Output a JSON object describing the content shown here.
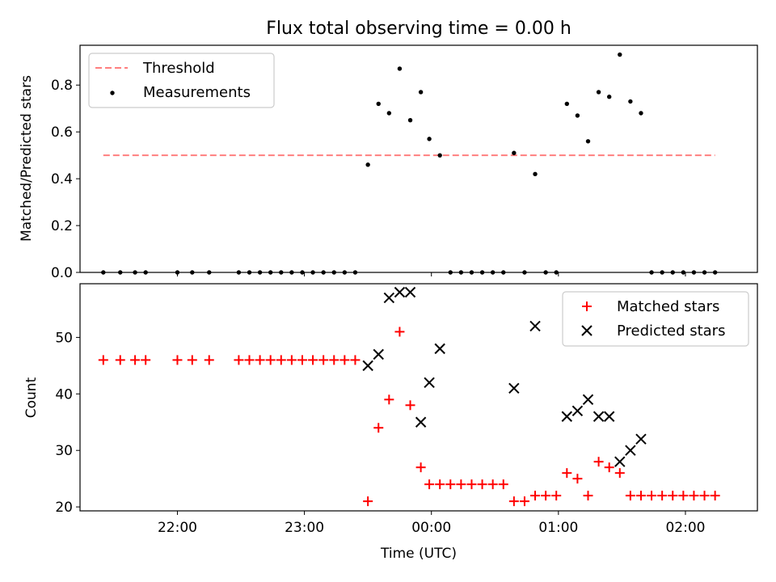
{
  "chart_data": [
    {
      "type": "scatter",
      "title": "Flux total observing time = 0.00 h",
      "xlabel": "",
      "ylabel": "Matched/Predicted stars",
      "ylim": [
        0,
        0.97
      ],
      "xlim": [
        "21:14",
        "02:34"
      ],
      "yticks": [
        "0.0",
        "0.2",
        "0.4",
        "0.6",
        "0.8"
      ],
      "legend_position": "top-left",
      "threshold": {
        "name": "Threshold",
        "value": 0.5,
        "x_start": "21:25",
        "x_end": "02:14",
        "color": "#ff7f7f",
        "style": "dashed"
      },
      "series": [
        {
          "name": "Measurements",
          "color": "#000000",
          "points": [
            [
              "21:25",
              0
            ],
            [
              "21:33",
              0
            ],
            [
              "21:40",
              0
            ],
            [
              "21:45",
              0
            ],
            [
              "22:00",
              0
            ],
            [
              "22:07",
              0
            ],
            [
              "22:15",
              0
            ],
            [
              "22:29",
              0
            ],
            [
              "22:34",
              0
            ],
            [
              "22:39",
              0
            ],
            [
              "22:44",
              0
            ],
            [
              "22:49",
              0
            ],
            [
              "22:54",
              0
            ],
            [
              "22:59",
              0
            ],
            [
              "23:04",
              0
            ],
            [
              "23:09",
              0
            ],
            [
              "23:14",
              0
            ],
            [
              "23:19",
              0
            ],
            [
              "23:24",
              0
            ],
            [
              "23:30",
              0.46
            ],
            [
              "23:35",
              0.72
            ],
            [
              "23:40",
              0.68
            ],
            [
              "23:45",
              0.87
            ],
            [
              "23:50",
              0.65
            ],
            [
              "23:55",
              0.77
            ],
            [
              "23:59",
              0.57
            ],
            [
              "00:04",
              0.5
            ],
            [
              "00:09",
              0
            ],
            [
              "00:14",
              0
            ],
            [
              "00:19",
              0
            ],
            [
              "00:24",
              0
            ],
            [
              "00:29",
              0
            ],
            [
              "00:34",
              0
            ],
            [
              "00:39",
              0.51
            ],
            [
              "00:44",
              0
            ],
            [
              "00:49",
              0.42
            ],
            [
              "00:54",
              0
            ],
            [
              "00:59",
              0
            ],
            [
              "01:04",
              0.72
            ],
            [
              "01:09",
              0.67
            ],
            [
              "01:14",
              0.56
            ],
            [
              "01:19",
              0.77
            ],
            [
              "01:24",
              0.75
            ],
            [
              "01:29",
              0.93
            ],
            [
              "01:34",
              0.73
            ],
            [
              "01:39",
              0.68
            ],
            [
              "01:44",
              0
            ],
            [
              "01:49",
              0
            ],
            [
              "01:54",
              0
            ],
            [
              "01:59",
              0
            ],
            [
              "02:04",
              0
            ],
            [
              "02:09",
              0
            ],
            [
              "02:14",
              0
            ]
          ]
        }
      ]
    },
    {
      "type": "scatter",
      "title": "",
      "xlabel": "Time (UTC)",
      "ylabel": "Count",
      "ylim": [
        19.3,
        59.5
      ],
      "xlim": [
        "21:14",
        "02:34"
      ],
      "yticks": [
        "20",
        "30",
        "40",
        "50"
      ],
      "xticks": [
        "22:00",
        "23:00",
        "00:00",
        "01:00",
        "02:00"
      ],
      "legend_position": "top-right",
      "series": [
        {
          "name": "Matched stars",
          "color": "#ff0000",
          "marker": "+",
          "points": [
            [
              "21:25",
              46
            ],
            [
              "21:33",
              46
            ],
            [
              "21:40",
              46
            ],
            [
              "21:45",
              46
            ],
            [
              "22:00",
              46
            ],
            [
              "22:07",
              46
            ],
            [
              "22:15",
              46
            ],
            [
              "22:29",
              46
            ],
            [
              "22:34",
              46
            ],
            [
              "22:39",
              46
            ],
            [
              "22:44",
              46
            ],
            [
              "22:49",
              46
            ],
            [
              "22:54",
              46
            ],
            [
              "22:59",
              46
            ],
            [
              "23:04",
              46
            ],
            [
              "23:09",
              46
            ],
            [
              "23:14",
              46
            ],
            [
              "23:19",
              46
            ],
            [
              "23:24",
              46
            ],
            [
              "23:30",
              21
            ],
            [
              "23:35",
              34
            ],
            [
              "23:40",
              39
            ],
            [
              "23:45",
              51
            ],
            [
              "23:50",
              38
            ],
            [
              "23:55",
              27
            ],
            [
              "23:59",
              24
            ],
            [
              "00:04",
              24
            ],
            [
              "00:09",
              24
            ],
            [
              "00:14",
              24
            ],
            [
              "00:19",
              24
            ],
            [
              "00:24",
              24
            ],
            [
              "00:29",
              24
            ],
            [
              "00:34",
              24
            ],
            [
              "00:39",
              21
            ],
            [
              "00:44",
              21
            ],
            [
              "00:49",
              22
            ],
            [
              "00:54",
              22
            ],
            [
              "00:59",
              22
            ],
            [
              "01:04",
              26
            ],
            [
              "01:09",
              25
            ],
            [
              "01:14",
              22
            ],
            [
              "01:19",
              28
            ],
            [
              "01:24",
              27
            ],
            [
              "01:29",
              26
            ],
            [
              "01:34",
              22
            ],
            [
              "01:39",
              22
            ],
            [
              "01:44",
              22
            ],
            [
              "01:49",
              22
            ],
            [
              "01:54",
              22
            ],
            [
              "01:59",
              22
            ],
            [
              "02:04",
              22
            ],
            [
              "02:09",
              22
            ],
            [
              "02:14",
              22
            ]
          ]
        },
        {
          "name": "Predicted stars",
          "color": "#000000",
          "marker": "x",
          "points": [
            [
              "23:30",
              45
            ],
            [
              "23:35",
              47
            ],
            [
              "23:40",
              57
            ],
            [
              "23:45",
              58
            ],
            [
              "23:50",
              58
            ],
            [
              "23:55",
              35
            ],
            [
              "23:59",
              42
            ],
            [
              "00:04",
              48
            ],
            [
              "00:39",
              41
            ],
            [
              "00:49",
              52
            ],
            [
              "01:04",
              36
            ],
            [
              "01:09",
              37
            ],
            [
              "01:14",
              39
            ],
            [
              "01:19",
              36
            ],
            [
              "01:24",
              36
            ],
            [
              "01:29",
              28
            ],
            [
              "01:34",
              30
            ],
            [
              "01:39",
              32
            ]
          ]
        }
      ]
    }
  ]
}
